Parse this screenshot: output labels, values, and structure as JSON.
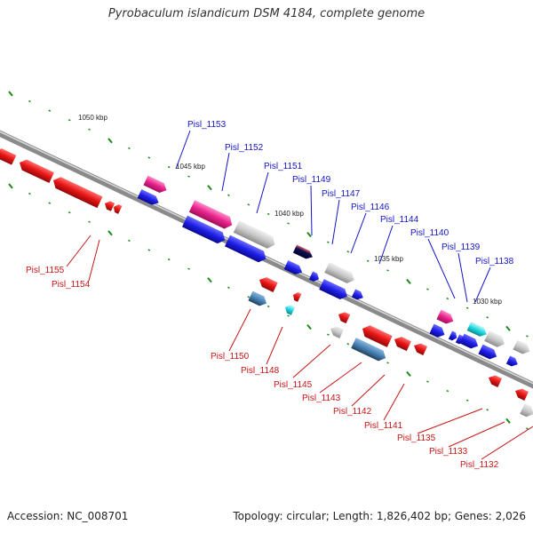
{
  "title": "Pyrobaculum islandicum DSM 4184, complete genome",
  "footer": {
    "accession": "Accession: NC_008701",
    "summary": "Topology: circular; Length: 1,826,402 bp; Genes: 2,026"
  },
  "colors": {
    "forward_label": "#1414c8",
    "reverse_label": "#c81414",
    "backbone": "#888888",
    "tick": "#1a8a1a",
    "gene_blue": "#1e1ee8",
    "gene_red": "#e81414",
    "gene_pink": "#e8228c",
    "gene_grey": "#c8c8c8",
    "gene_steelblue": "#4682b4",
    "gene_cyan": "#20d8e0"
  },
  "scale_labels": [
    "1050 kbp",
    "1045 kbp",
    "1040 kbp",
    "1035 kbp",
    "1030 kbp"
  ],
  "forward_labels": [
    "Pisl_1153",
    "Pisl_1152",
    "Pisl_1151",
    "Pisl_1149",
    "Pisl_1147",
    "Pisl_1146",
    "Pisl_1144",
    "Pisl_1140",
    "Pisl_1139",
    "Pisl_1138"
  ],
  "reverse_labels": [
    "Pisl_1155",
    "Pisl_1154",
    "Pisl_1150",
    "Pisl_1148",
    "Pisl_1145",
    "Pisl_1143",
    "Pisl_1142",
    "Pisl_1141",
    "Pisl_1135",
    "Pisl_1133",
    "Pisl_1132"
  ]
}
